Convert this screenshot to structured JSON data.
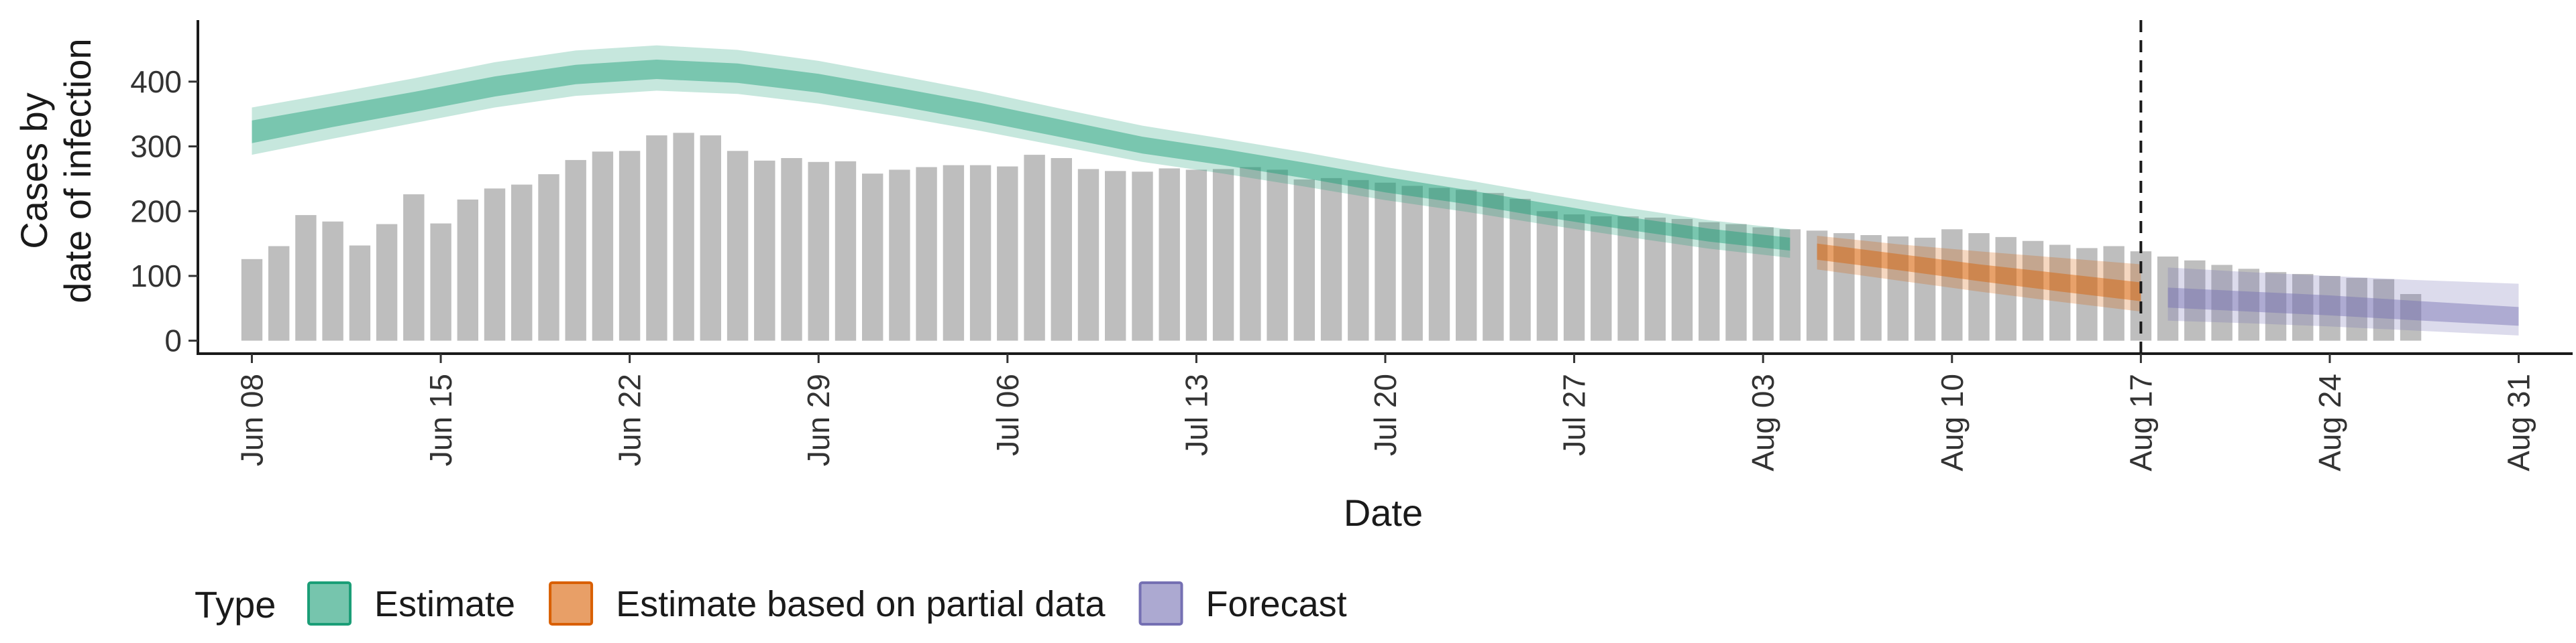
{
  "chart_data": {
    "type": "bar",
    "xlabel": "Date",
    "ylabel_lines": [
      "Cases by",
      "date of infection"
    ],
    "legend_title": "Type",
    "ylim": [
      -20,
      495
    ],
    "yticks": [
      0,
      100,
      200,
      300,
      400
    ],
    "xlim": [
      "2020-06-06",
      "2020-09-02"
    ],
    "xticks": [
      {
        "date": "2020-06-08",
        "label": "Jun 08"
      },
      {
        "date": "2020-06-15",
        "label": "Jun 15"
      },
      {
        "date": "2020-06-22",
        "label": "Jun 22"
      },
      {
        "date": "2020-06-29",
        "label": "Jun 29"
      },
      {
        "date": "2020-07-06",
        "label": "Jul 06"
      },
      {
        "date": "2020-07-13",
        "label": "Jul 13"
      },
      {
        "date": "2020-07-20",
        "label": "Jul 20"
      },
      {
        "date": "2020-07-27",
        "label": "Jul 27"
      },
      {
        "date": "2020-08-03",
        "label": "Aug 03"
      },
      {
        "date": "2020-08-10",
        "label": "Aug 10"
      },
      {
        "date": "2020-08-17",
        "label": "Aug 17"
      },
      {
        "date": "2020-08-24",
        "label": "Aug 24"
      },
      {
        "date": "2020-08-31",
        "label": "Aug 31"
      }
    ],
    "vline_date": "2020-08-17",
    "bars": {
      "start_date": "2020-06-08",
      "values": [
        126,
        146,
        194,
        184,
        147,
        180,
        226,
        181,
        218,
        235,
        241,
        257,
        279,
        292,
        293,
        317,
        321,
        317,
        293,
        278,
        282,
        276,
        277,
        258,
        264,
        268,
        271,
        271,
        269,
        287,
        282,
        265,
        262,
        261,
        266,
        264,
        265,
        268,
        264,
        249,
        251,
        248,
        244,
        239,
        236,
        233,
        228,
        219,
        200,
        195,
        192,
        192,
        190,
        188,
        183,
        180,
        175,
        172,
        170,
        166,
        163,
        161,
        159,
        172,
        166,
        160,
        154,
        148,
        143,
        146,
        138,
        130,
        124,
        117,
        111,
        106,
        103,
        100,
        97,
        95,
        72
      ]
    },
    "series": [
      {
        "name": "Estimate",
        "color": "#1B9E77",
        "points": [
          {
            "date": "2020-06-08",
            "median": 322,
            "lo50": 305,
            "hi50": 340,
            "lo90": 287,
            "hi90": 360
          },
          {
            "date": "2020-06-11",
            "median": 345,
            "lo50": 330,
            "hi50": 362,
            "lo90": 312,
            "hi90": 382
          },
          {
            "date": "2020-06-14",
            "median": 368,
            "lo50": 353,
            "hi50": 384,
            "lo90": 336,
            "hi90": 405
          },
          {
            "date": "2020-06-17",
            "median": 392,
            "lo50": 377,
            "hi50": 408,
            "lo90": 360,
            "hi90": 430
          },
          {
            "date": "2020-06-20",
            "median": 411,
            "lo50": 396,
            "hi50": 426,
            "lo90": 378,
            "hi90": 448
          },
          {
            "date": "2020-06-23",
            "median": 419,
            "lo50": 404,
            "hi50": 434,
            "lo90": 386,
            "hi90": 456
          },
          {
            "date": "2020-06-26",
            "median": 413,
            "lo50": 398,
            "hi50": 428,
            "lo90": 381,
            "hi90": 449
          },
          {
            "date": "2020-06-29",
            "median": 397,
            "lo50": 383,
            "hi50": 412,
            "lo90": 366,
            "hi90": 432
          },
          {
            "date": "2020-07-02",
            "median": 376,
            "lo50": 362,
            "hi50": 390,
            "lo90": 346,
            "hi90": 409
          },
          {
            "date": "2020-07-05",
            "median": 353,
            "lo50": 339,
            "hi50": 367,
            "lo90": 324,
            "hi90": 385
          },
          {
            "date": "2020-07-08",
            "median": 327,
            "lo50": 314,
            "hi50": 341,
            "lo90": 300,
            "hi90": 358
          },
          {
            "date": "2020-07-11",
            "median": 302,
            "lo50": 289,
            "hi50": 315,
            "lo90": 276,
            "hi90": 332
          },
          {
            "date": "2020-07-14",
            "median": 283,
            "lo50": 271,
            "hi50": 296,
            "lo90": 258,
            "hi90": 312
          },
          {
            "date": "2020-07-17",
            "median": 263,
            "lo50": 251,
            "hi50": 275,
            "lo90": 238,
            "hi90": 291
          },
          {
            "date": "2020-07-20",
            "median": 241,
            "lo50": 229,
            "hi50": 253,
            "lo90": 217,
            "hi90": 268
          },
          {
            "date": "2020-07-23",
            "median": 222,
            "lo50": 211,
            "hi50": 233,
            "lo90": 199,
            "hi90": 248
          },
          {
            "date": "2020-07-26",
            "median": 201,
            "lo50": 190,
            "hi50": 212,
            "lo90": 179,
            "hi90": 226
          },
          {
            "date": "2020-07-29",
            "median": 181,
            "lo50": 171,
            "hi50": 191,
            "lo90": 160,
            "hi90": 205
          },
          {
            "date": "2020-08-01",
            "median": 163,
            "lo50": 153,
            "hi50": 173,
            "lo90": 142,
            "hi90": 186
          },
          {
            "date": "2020-08-04",
            "median": 149,
            "lo50": 139,
            "hi50": 159,
            "lo90": 128,
            "hi90": 172
          }
        ]
      },
      {
        "name": "Estimate based on partial data",
        "color": "#D95F02",
        "points": [
          {
            "date": "2020-08-05",
            "median": 138,
            "lo50": 125,
            "hi50": 150,
            "lo90": 110,
            "hi90": 162
          },
          {
            "date": "2020-08-08",
            "median": 121,
            "lo50": 109,
            "hi50": 134,
            "lo90": 93,
            "hi90": 149
          },
          {
            "date": "2020-08-11",
            "median": 104,
            "lo50": 92,
            "hi50": 118,
            "lo90": 76,
            "hi90": 138
          },
          {
            "date": "2020-08-14",
            "median": 89,
            "lo50": 76,
            "hi50": 104,
            "lo90": 60,
            "hi90": 128
          },
          {
            "date": "2020-08-17",
            "median": 74,
            "lo50": 61,
            "hi50": 90,
            "lo90": 45,
            "hi90": 118
          }
        ]
      },
      {
        "name": "Forecast",
        "color": "#7570B3",
        "points": [
          {
            "date": "2020-08-18",
            "median": 66,
            "lo50": 51,
            "hi50": 82,
            "lo90": 31,
            "hi90": 113
          },
          {
            "date": "2020-08-21",
            "median": 60,
            "lo50": 45,
            "hi50": 76,
            "lo90": 27,
            "hi90": 106
          },
          {
            "date": "2020-08-24",
            "median": 54,
            "lo50": 39,
            "hi50": 70,
            "lo90": 22,
            "hi90": 100
          },
          {
            "date": "2020-08-27",
            "median": 46,
            "lo50": 32,
            "hi50": 62,
            "lo90": 16,
            "hi90": 94
          },
          {
            "date": "2020-08-31",
            "median": 37,
            "lo50": 23,
            "hi50": 52,
            "lo90": 8,
            "hi90": 88
          }
        ]
      }
    ],
    "legend_position": "bottom"
  }
}
